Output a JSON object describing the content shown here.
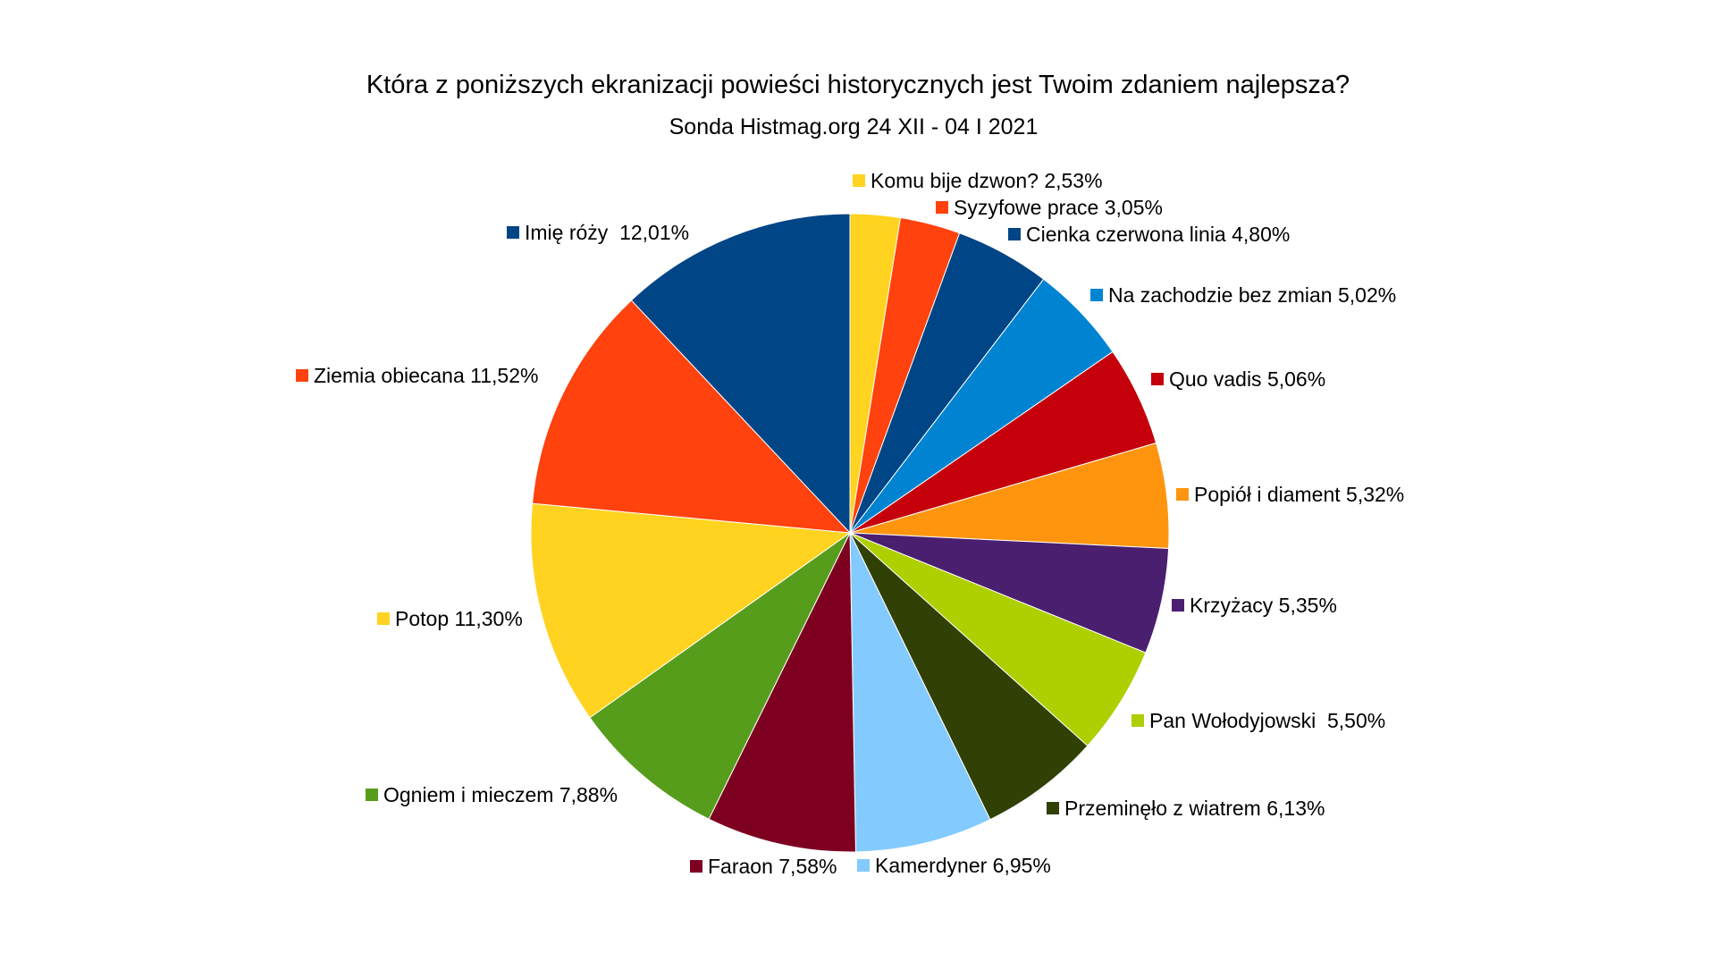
{
  "chart_data": {
    "type": "pie",
    "title": "Która z poniższych ekranizacji powieści historycznych jest Twoim zdaniem najlepsza?",
    "subtitle": "Sonda Histmag.org 24 XII - 04 I 2021",
    "unit": "%",
    "start_angle_deg": 0,
    "direction": "clockwise",
    "legend": "none",
    "data_labels": "outside with color swatch",
    "slices": [
      {
        "label": "Komu bije dzwon? 2,53%",
        "value": 2.53,
        "color": "#FFD320"
      },
      {
        "label": "Syzyfowe prace 3,05%",
        "value": 3.05,
        "color": "#FF420E"
      },
      {
        "label": "Cienka czerwona linia 4,80%",
        "value": 4.8,
        "color": "#004586"
      },
      {
        "label": "Na zachodzie bez zmian 5,02%",
        "value": 5.02,
        "color": "#0084D1"
      },
      {
        "label": "Quo vadis 5,06%",
        "value": 5.06,
        "color": "#C5000B"
      },
      {
        "label": "Popiół i diament 5,32%",
        "value": 5.32,
        "color": "#FF950E"
      },
      {
        "label": "Krzyżacy 5,35%",
        "value": 5.35,
        "color": "#4B1F6F"
      },
      {
        "label": "Pan Wołodyjowski  5,50%",
        "value": 5.5,
        "color": "#AECF00"
      },
      {
        "label": "Przeminęło z wiatrem 6,13%",
        "value": 6.13,
        "color": "#314004"
      },
      {
        "label": "Kamerdyner 6,95%",
        "value": 6.95,
        "color": "#83CAFF"
      },
      {
        "label": "Faraon 7,58%",
        "value": 7.58,
        "color": "#7E0021"
      },
      {
        "label": "Ogniem i mieczem 7,88%",
        "value": 7.88,
        "color": "#579D1C"
      },
      {
        "label": "Potop 11,30%",
        "value": 11.3,
        "color": "#FFD320"
      },
      {
        "label": "Ziemia obiecana 11,52%",
        "value": 11.52,
        "color": "#FF420E"
      },
      {
        "label": "Imię róży  12,01%",
        "value": 12.01,
        "color": "#004586"
      }
    ]
  }
}
